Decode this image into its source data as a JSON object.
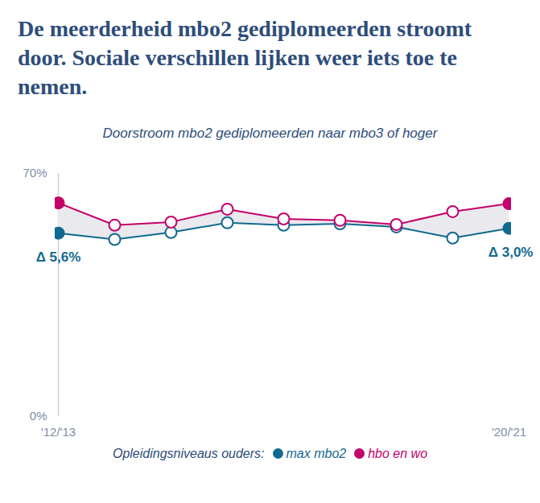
{
  "chart_data": {
    "type": "line",
    "title": "De meerderheid mbo2 gediplomeerden stroomt door. Sociale verschillen lijken weer iets toe te nemen.",
    "subtitle": "Doorstroom mbo2 gediplomeerden naar mbo3 of hoger",
    "categories": [
      "'12/'13",
      null,
      null,
      null,
      null,
      null,
      null,
      null,
      "'20/'21"
    ],
    "series": [
      {
        "name": "max mbo2",
        "color": "#12698f",
        "marker": "circle",
        "values": [
          52.8,
          51.0,
          53.0,
          55.8,
          55.1,
          55.5,
          54.6,
          51.4,
          54.2
        ]
      },
      {
        "name": "hbo en wo",
        "color": "#c4006a",
        "marker": "circle",
        "values": [
          61.5,
          55.1,
          56.0,
          59.7,
          56.9,
          56.5,
          55.3,
          59.0,
          61.3
        ]
      }
    ],
    "ylim": [
      0,
      70
    ],
    "yticks": [
      {
        "value": 0,
        "label": "0%"
      },
      {
        "value": 70,
        "label": "70%"
      }
    ],
    "grid": false,
    "legend": "bottom",
    "legend_title": "Opleidingsniveaus ouders:",
    "annotations": [
      "Δ 5,6%",
      "Δ 3,0%"
    ]
  }
}
